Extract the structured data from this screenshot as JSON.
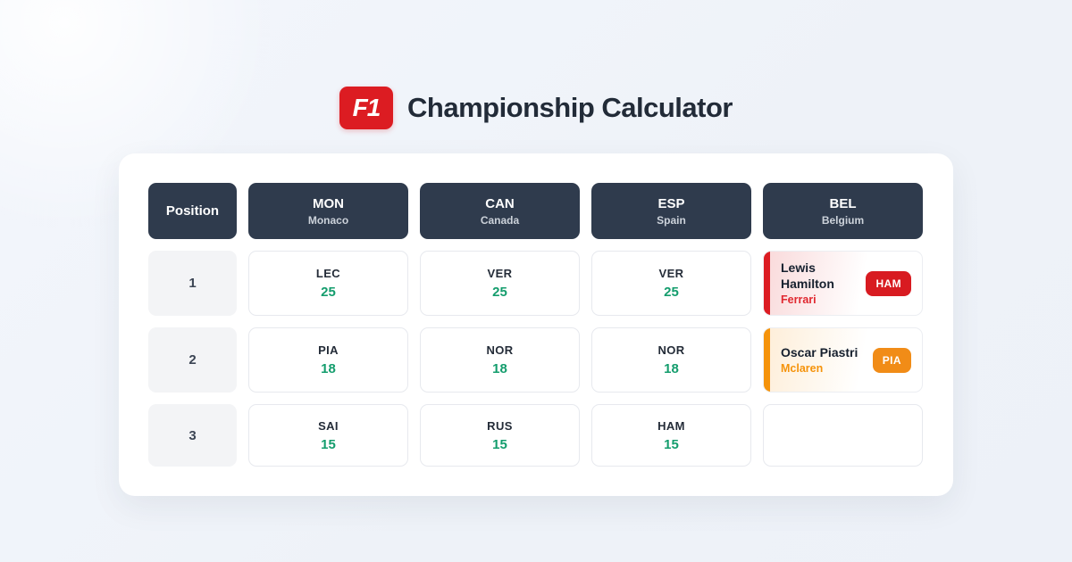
{
  "header": {
    "logo": "F1",
    "title": "Championship Calculator"
  },
  "table": {
    "position_header": "Position",
    "races": [
      {
        "code": "MON",
        "country": "Monaco"
      },
      {
        "code": "CAN",
        "country": "Canada"
      },
      {
        "code": "ESP",
        "country": "Spain"
      },
      {
        "code": "BEL",
        "country": "Belgium"
      }
    ],
    "rows": [
      {
        "position": "1",
        "results": [
          {
            "driver": "LEC",
            "points": "25"
          },
          {
            "driver": "VER",
            "points": "25"
          },
          {
            "driver": "VER",
            "points": "25"
          }
        ],
        "pick": {
          "name": "Lewis Hamilton",
          "team": "Ferrari",
          "badge": "HAM",
          "accent_color": "#dc1c22"
        }
      },
      {
        "position": "2",
        "results": [
          {
            "driver": "PIA",
            "points": "18"
          },
          {
            "driver": "NOR",
            "points": "18"
          },
          {
            "driver": "NOR",
            "points": "18"
          }
        ],
        "pick": {
          "name": "Oscar Piastri",
          "team": "Mclaren",
          "badge": "PIA",
          "accent_color": "#f5930b"
        }
      },
      {
        "position": "3",
        "results": [
          {
            "driver": "SAI",
            "points": "15"
          },
          {
            "driver": "RUS",
            "points": "15"
          },
          {
            "driver": "HAM",
            "points": "15"
          }
        ],
        "pick": null
      }
    ]
  },
  "colors": {
    "background": "#eef2f8",
    "card": "#ffffff",
    "header_cell": "#2f3b4d",
    "points_green": "#149d6d",
    "ferrari_red": "#dc1c22",
    "mclaren_orange": "#f5930b",
    "logo_red": "#dc1c22",
    "title_text": "#222b38"
  }
}
